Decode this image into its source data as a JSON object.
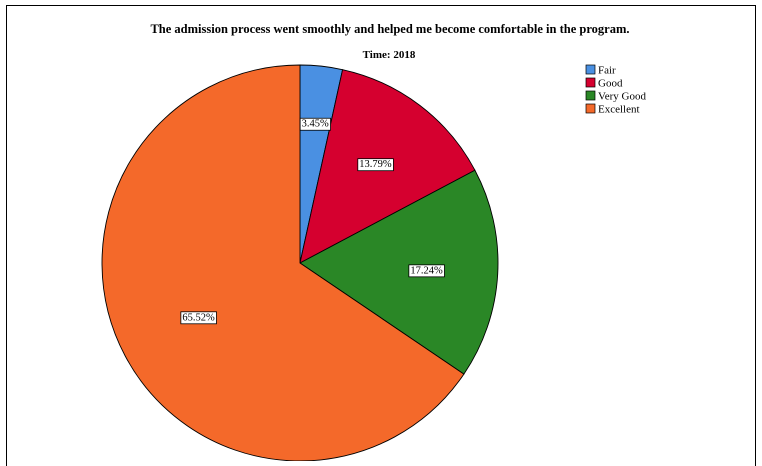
{
  "chart_data": {
    "type": "pie",
    "title": "The admission process went smoothly and helped me become comfortable in the program.",
    "subtitle": "Time: 2018",
    "categories": [
      "Fair",
      "Good",
      "Very Good",
      "Excellent"
    ],
    "values": [
      3.45,
      13.79,
      17.24,
      65.52
    ],
    "labels": [
      "3.45%",
      "13.79%",
      "17.24%",
      "65.52%"
    ],
    "colors": [
      "#4a90e2",
      "#d5002f",
      "#2a8726",
      "#f4692a"
    ],
    "legend_position": "top-right",
    "start_angle": "12 o'clock",
    "direction": "clockwise"
  }
}
